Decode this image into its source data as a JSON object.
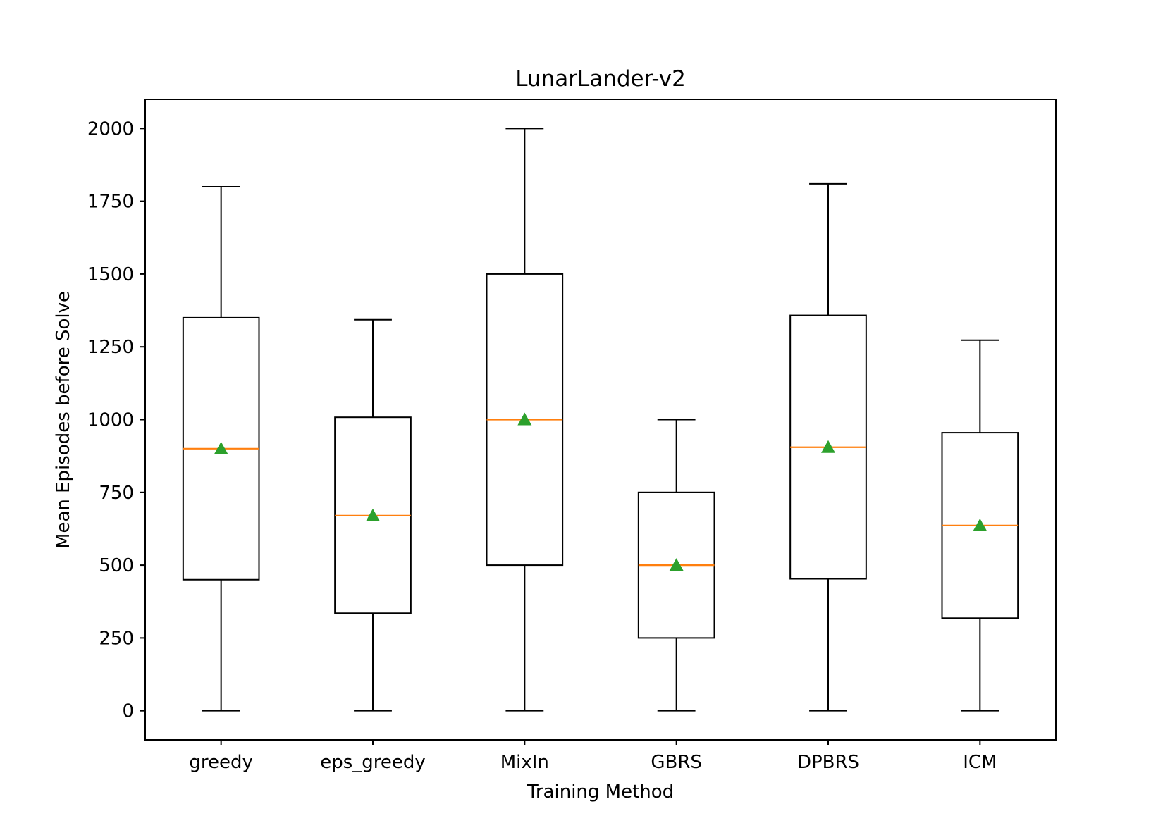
{
  "chart_data": {
    "type": "box",
    "title": "LunarLander-v2",
    "xlabel": "Training Method",
    "ylabel": "Mean Episodes before Solve",
    "categories": [
      "greedy",
      "eps_greedy",
      "MixIn",
      "GBRS",
      "DPBRS",
      "ICM"
    ],
    "ylim": [
      -100,
      2100
    ],
    "yticks": [
      0,
      250,
      500,
      750,
      1000,
      1250,
      1500,
      1750,
      2000
    ],
    "grid": false,
    "boxes": [
      {
        "category": "greedy",
        "whislo": 0,
        "q1": 450,
        "median": 900,
        "q3": 1350,
        "whishi": 1800,
        "mean": 900
      },
      {
        "category": "eps_greedy",
        "whislo": 0,
        "q1": 335,
        "median": 670,
        "q3": 1008,
        "whishi": 1343,
        "mean": 670
      },
      {
        "category": "MixIn",
        "whislo": 0,
        "q1": 500,
        "median": 1000,
        "q3": 1500,
        "whishi": 2000,
        "mean": 1000
      },
      {
        "category": "GBRS",
        "whislo": 0,
        "q1": 250,
        "median": 500,
        "q3": 750,
        "whishi": 1000,
        "mean": 500
      },
      {
        "category": "DPBRS",
        "whislo": 0,
        "q1": 453,
        "median": 905,
        "q3": 1358,
        "whishi": 1810,
        "mean": 905
      },
      {
        "category": "ICM",
        "whislo": 0,
        "q1": 318,
        "median": 636,
        "q3": 955,
        "whishi": 1273,
        "mean": 636
      }
    ],
    "colors": {
      "box": "#000000",
      "median": "#ff7f0e",
      "mean_marker": "#2ca02c"
    }
  }
}
